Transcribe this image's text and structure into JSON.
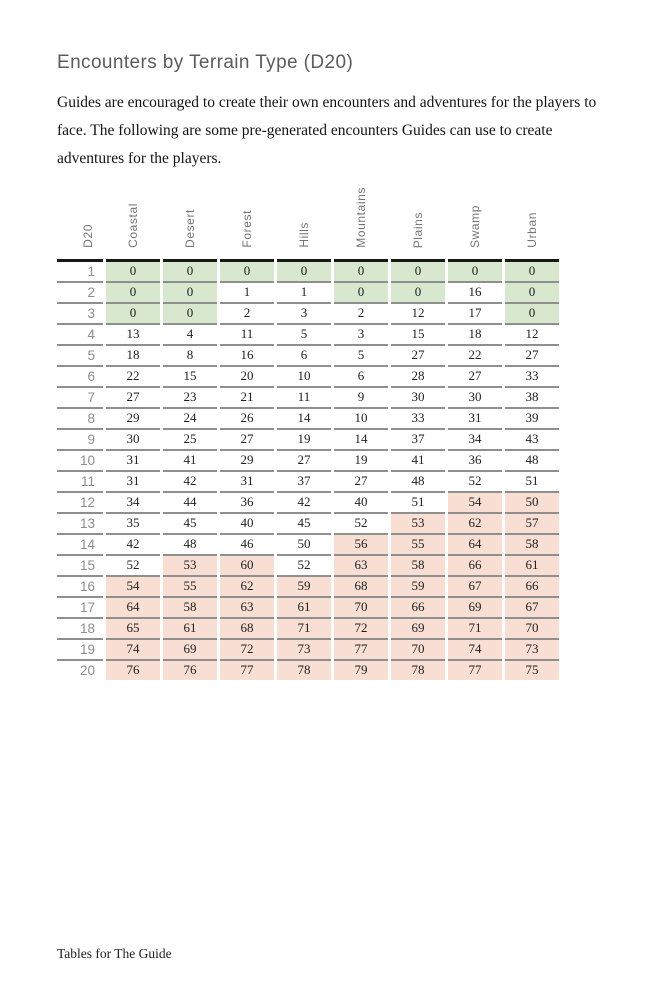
{
  "page": {
    "title": "Encounters by Terrain Type (D20)",
    "intro": "Guides are encouraged to create their own encounters and adventures for the players to face. The following are some pre-generated encounters Guides can use to create adventures for the players.",
    "footer": "Tables for The Guide"
  },
  "colors": {
    "highlight_green": "#d7e8cf",
    "highlight_pink": "#f8ded3",
    "header_rule": "#181818",
    "row_rule": "#8f8f8f"
  },
  "table": {
    "row_header": "D20",
    "columns": [
      "Coastal",
      "Desert",
      "Forest",
      "Hills",
      "Mountains",
      "Plains",
      "Swamp",
      "Urban"
    ],
    "rows": [
      {
        "d20": "1",
        "values": [
          "0",
          "0",
          "0",
          "0",
          "0",
          "0",
          "0",
          "0"
        ],
        "hl": [
          "g",
          "g",
          "g",
          "g",
          "g",
          "g",
          "g",
          "g"
        ]
      },
      {
        "d20": "2",
        "values": [
          "0",
          "0",
          "1",
          "1",
          "0",
          "0",
          "16",
          "0"
        ],
        "hl": [
          "g",
          "g",
          "",
          "",
          "g",
          "g",
          "",
          "g"
        ]
      },
      {
        "d20": "3",
        "values": [
          "0",
          "0",
          "2",
          "3",
          "2",
          "12",
          "17",
          "0"
        ],
        "hl": [
          "g",
          "g",
          "",
          "",
          "",
          "",
          "",
          "g"
        ]
      },
      {
        "d20": "4",
        "values": [
          "13",
          "4",
          "11",
          "5",
          "3",
          "15",
          "18",
          "12"
        ],
        "hl": [
          "",
          "",
          "",
          "",
          "",
          "",
          "",
          ""
        ]
      },
      {
        "d20": "5",
        "values": [
          "18",
          "8",
          "16",
          "6",
          "5",
          "27",
          "22",
          "27"
        ],
        "hl": [
          "",
          "",
          "",
          "",
          "",
          "",
          "",
          ""
        ]
      },
      {
        "d20": "6",
        "values": [
          "22",
          "15",
          "20",
          "10",
          "6",
          "28",
          "27",
          "33"
        ],
        "hl": [
          "",
          "",
          "",
          "",
          "",
          "",
          "",
          ""
        ]
      },
      {
        "d20": "7",
        "values": [
          "27",
          "23",
          "21",
          "11",
          "9",
          "30",
          "30",
          "38"
        ],
        "hl": [
          "",
          "",
          "",
          "",
          "",
          "",
          "",
          ""
        ]
      },
      {
        "d20": "8",
        "values": [
          "29",
          "24",
          "26",
          "14",
          "10",
          "33",
          "31",
          "39"
        ],
        "hl": [
          "",
          "",
          "",
          "",
          "",
          "",
          "",
          ""
        ]
      },
      {
        "d20": "9",
        "values": [
          "30",
          "25",
          "27",
          "19",
          "14",
          "37",
          "34",
          "43"
        ],
        "hl": [
          "",
          "",
          "",
          "",
          "",
          "",
          "",
          ""
        ]
      },
      {
        "d20": "10",
        "values": [
          "31",
          "41",
          "29",
          "27",
          "19",
          "41",
          "36",
          "48"
        ],
        "hl": [
          "",
          "",
          "",
          "",
          "",
          "",
          "",
          ""
        ]
      },
      {
        "d20": "11",
        "values": [
          "31",
          "42",
          "31",
          "37",
          "27",
          "48",
          "52",
          "51"
        ],
        "hl": [
          "",
          "",
          "",
          "",
          "",
          "",
          "",
          ""
        ]
      },
      {
        "d20": "12",
        "values": [
          "34",
          "44",
          "36",
          "42",
          "40",
          "51",
          "54",
          "50"
        ],
        "hl": [
          "",
          "",
          "",
          "",
          "",
          "",
          "p",
          "p"
        ]
      },
      {
        "d20": "13",
        "values": [
          "35",
          "45",
          "40",
          "45",
          "52",
          "53",
          "62",
          "57"
        ],
        "hl": [
          "",
          "",
          "",
          "",
          "",
          "p",
          "p",
          "p"
        ]
      },
      {
        "d20": "14",
        "values": [
          "42",
          "48",
          "46",
          "50",
          "56",
          "55",
          "64",
          "58"
        ],
        "hl": [
          "",
          "",
          "",
          "",
          "p",
          "p",
          "p",
          "p"
        ]
      },
      {
        "d20": "15",
        "values": [
          "52",
          "53",
          "60",
          "52",
          "63",
          "58",
          "66",
          "61"
        ],
        "hl": [
          "",
          "p",
          "p",
          "",
          "p",
          "p",
          "p",
          "p"
        ]
      },
      {
        "d20": "16",
        "values": [
          "54",
          "55",
          "62",
          "59",
          "68",
          "59",
          "67",
          "66"
        ],
        "hl": [
          "p",
          "p",
          "p",
          "p",
          "p",
          "p",
          "p",
          "p"
        ]
      },
      {
        "d20": "17",
        "values": [
          "64",
          "58",
          "63",
          "61",
          "70",
          "66",
          "69",
          "67"
        ],
        "hl": [
          "p",
          "p",
          "p",
          "p",
          "p",
          "p",
          "p",
          "p"
        ]
      },
      {
        "d20": "18",
        "values": [
          "65",
          "61",
          "68",
          "71",
          "72",
          "69",
          "71",
          "70"
        ],
        "hl": [
          "p",
          "p",
          "p",
          "p",
          "p",
          "p",
          "p",
          "p"
        ]
      },
      {
        "d20": "19",
        "values": [
          "74",
          "69",
          "72",
          "73",
          "77",
          "70",
          "74",
          "73"
        ],
        "hl": [
          "p",
          "p",
          "p",
          "p",
          "p",
          "p",
          "p",
          "p"
        ]
      },
      {
        "d20": "20",
        "values": [
          "76",
          "76",
          "77",
          "78",
          "79",
          "78",
          "77",
          "75"
        ],
        "hl": [
          "p",
          "p",
          "p",
          "p",
          "p",
          "p",
          "p",
          "p"
        ]
      }
    ]
  }
}
